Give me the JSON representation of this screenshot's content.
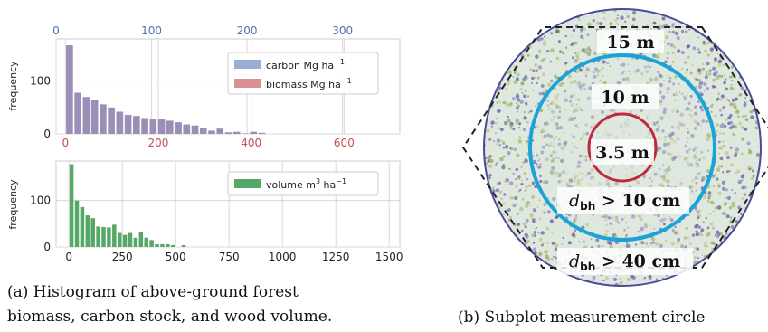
{
  "chart_data": [
    {
      "type": "bar",
      "panel": "top-histogram",
      "ylabel": "frequency",
      "top_axis": {
        "ticks": [
          0,
          100,
          200,
          300
        ],
        "color": "#4c72b0",
        "range": [
          0,
          360
        ]
      },
      "bottom_axis": {
        "ticks": [
          0,
          200,
          400,
          600
        ],
        "color": "#c44e52",
        "range": [
          -20,
          720
        ]
      },
      "ylim": [
        0,
        180
      ],
      "yticks": [
        0,
        100
      ],
      "grid": true,
      "legend_position": "upper-right",
      "bin_start": 0,
      "bin_width": 18,
      "series": [
        {
          "name": "carbon Mg ha$^{-1}$",
          "legend": {
            "pre": "carbon Mg ha",
            "sup": "−1"
          },
          "color": "#9aaed4"
        },
        {
          "name": "biomass Mg ha$^{-1}$",
          "legend": {
            "pre": "biomass Mg ha",
            "sup": "−1"
          },
          "color": "#d88f95"
        }
      ],
      "values": [
        168,
        78,
        70,
        64,
        56,
        50,
        42,
        36,
        34,
        30,
        29,
        28,
        25,
        22,
        18,
        16,
        12,
        6,
        10,
        3,
        4,
        1,
        4,
        2
      ],
      "bar_color": "#9b8fb8"
    },
    {
      "type": "bar",
      "panel": "bottom-histogram",
      "ylabel": "frequency",
      "xticks": [
        0,
        250,
        500,
        750,
        1000,
        1250,
        1500
      ],
      "xlim": [
        -60,
        1550
      ],
      "ylim": [
        0,
        185
      ],
      "yticks": [
        0,
        100
      ],
      "grid": true,
      "legend_position": "upper-right",
      "bin_start": 0,
      "bin_width": 25,
      "series": [
        {
          "name": "volume m$^3$ ha$^{-1}$",
          "legend": {
            "pre": "volume m",
            "sup": "3",
            "mid": " ha",
            "sup2": "−1"
          },
          "color": "#55a868"
        }
      ],
      "values": [
        178,
        100,
        86,
        68,
        62,
        44,
        43,
        42,
        48,
        30,
        26,
        30,
        20,
        32,
        20,
        15,
        6,
        6,
        6,
        4,
        0,
        4
      ]
    }
  ],
  "diagram": {
    "labels": {
      "r15": "15 m",
      "r10": "10 m",
      "r35": "3.5 m",
      "dbh10": {
        "var": "d",
        "sub": "bh",
        "rel": " > 10 cm"
      },
      "dbh40": {
        "var": "d",
        "sub": "bh",
        "rel": " > 40 cm"
      }
    },
    "colors": {
      "outer": "#4a4a9a",
      "ring10": "#1aa3d9",
      "ring35": "#c0283c",
      "hexagon": "#222222"
    }
  },
  "captions": {
    "a_line1": "(a)  Histogram  of  above-ground  forest",
    "a_line2": "biomass, carbon stock, and wood volume.",
    "b": "(b) Subplot measurement circle"
  }
}
